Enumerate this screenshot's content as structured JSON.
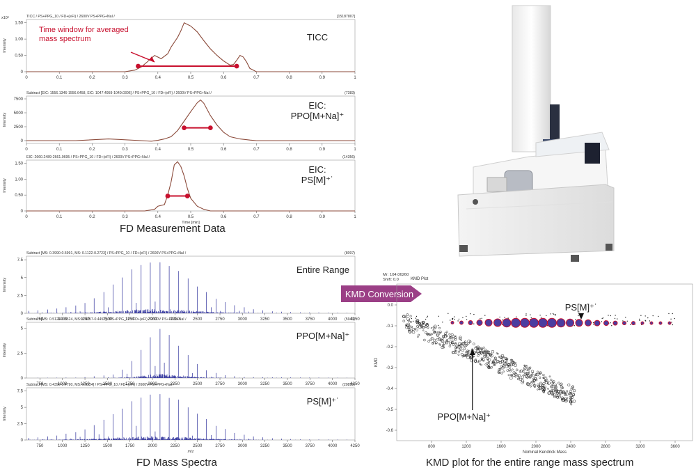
{
  "captions": {
    "fd_measurement": "FD Measurement Data",
    "fd_spectra": "FD Mass Spectra",
    "kmd": "KMD plot for the entire range mass spectrum",
    "kmd_conversion": "KMD Conversion"
  },
  "colors": {
    "trace": "#8b4a3a",
    "spectrum": "#2b2e9a",
    "window": "#c8102e",
    "kmd_arrow": "#9b3f86",
    "marker_fill": "#4b3da0",
    "marker_edge": "#c8102e",
    "scatter": "#222222"
  },
  "chart_data": [
    {
      "id": "ticc",
      "type": "line",
      "header": "TICC / PS+PPG_10 / FD+(eFI) / 2600V PS+PPG+NaI /",
      "header_right": "[15187807]",
      "exponent_label": "x10⁶",
      "ylabel": "Intensity",
      "series_label": "TICC",
      "annotation": [
        "Time window for averaged",
        "mass spectrum"
      ],
      "xlim": [
        0,
        1
      ],
      "ylim": [
        0,
        1.6
      ],
      "xticks": [
        "0",
        "0.1",
        "0.2",
        "0.3",
        "0.4",
        "0.5",
        "0.6",
        "0.7",
        "0.8",
        "0.9",
        "1"
      ],
      "yticks": [
        "0",
        "0.50",
        "1.00",
        "1.50"
      ],
      "x": [
        0,
        0.3,
        0.33,
        0.35,
        0.37,
        0.39,
        0.41,
        0.43,
        0.44,
        0.46,
        0.47,
        0.48,
        0.5,
        0.52,
        0.54,
        0.56,
        0.58,
        0.6,
        0.62,
        0.63,
        0.64,
        0.65,
        0.66,
        0.67,
        0.68,
        0.7,
        1
      ],
      "y": [
        0,
        0,
        0.05,
        0.15,
        0.32,
        0.5,
        0.4,
        0.55,
        0.75,
        1.05,
        1.25,
        1.5,
        1.4,
        1.22,
        0.95,
        0.7,
        0.5,
        0.33,
        0.2,
        0.22,
        0.35,
        0.5,
        0.45,
        0.3,
        0.1,
        0,
        0
      ],
      "window": [
        0.34,
        0.64
      ],
      "window_y": 0.17
    },
    {
      "id": "eic-ppo",
      "type": "line",
      "header": "Subtract [EIC: 1556.1346-1556.6458, EIC: 1047.4959-1049.0306] / PS+PPG_10 / FD+(eFI) / 2600V PS+PPG+NaI /",
      "header_right": "(7383)",
      "ylabel": "Intensity",
      "series_label": [
        "EIC:",
        "PPO[M+Na]⁺"
      ],
      "xlim": [
        0,
        1
      ],
      "ylim": [
        -500,
        8000
      ],
      "xticks": [
        "0",
        "0.1",
        "0.2",
        "0.3",
        "0.4",
        "0.5",
        "0.6",
        "0.7",
        "0.8",
        "0.9",
        "1"
      ],
      "yticks": [
        "0",
        "2500",
        "5000",
        "7500"
      ],
      "x": [
        0,
        0.15,
        0.25,
        0.35,
        0.38,
        0.4,
        0.42,
        0.44,
        0.46,
        0.48,
        0.5,
        0.52,
        0.53,
        0.54,
        0.56,
        0.58,
        0.6,
        0.62,
        0.65,
        0.68,
        0.7,
        1
      ],
      "y": [
        0,
        0,
        300,
        0,
        -100,
        50,
        300,
        700,
        1800,
        3500,
        5200,
        6800,
        7300,
        6700,
        4500,
        2800,
        1500,
        700,
        300,
        100,
        0,
        0
      ],
      "window": [
        0.48,
        0.56
      ],
      "window_y": 2300
    },
    {
      "id": "eic-ps",
      "type": "line",
      "header": "EIC: 2660.2489-2661.0695 / PS+PPG_10 / FD+(eFI) / 2600V PS+PPG+NaI /",
      "header_right": "(14356)",
      "ylabel": "Intensity",
      "xlabel": "Time [min]",
      "series_label": [
        "EIC:",
        "PS[M]⁺˙"
      ],
      "xlim": [
        0,
        1
      ],
      "ylim": [
        0,
        1.6
      ],
      "xticks": [
        "0",
        "0.1",
        "0.2",
        "0.3",
        "0.4",
        "0.5",
        "0.6",
        "0.7",
        "0.8",
        "0.9",
        "1"
      ],
      "yticks": [
        "0",
        "0.50",
        "1.00",
        "1.50"
      ],
      "x": [
        0,
        0.36,
        0.39,
        0.4,
        0.42,
        0.43,
        0.44,
        0.45,
        0.46,
        0.47,
        0.48,
        0.49,
        0.5,
        0.52,
        0.54,
        0.56,
        0.58,
        1
      ],
      "y": [
        0,
        0,
        0.05,
        0.15,
        0.2,
        0.5,
        0.9,
        1.45,
        1.55,
        1.4,
        1.1,
        0.7,
        0.4,
        0.15,
        0.05,
        0,
        0,
        0
      ],
      "window": [
        0.43,
        0.49
      ],
      "window_y": 0.47
    },
    {
      "id": "spec-entire",
      "type": "bar",
      "header": "Subtract [MS: 0.3990-0.5991, MS: 0.1122-0.2723] / PS+PPG_10 / FD+(eFI) / 2600V PS+PPG+NaI /",
      "header_right": "(8097)",
      "ylabel": "Intensity",
      "series_label": "Entire Range",
      "xlim": [
        600,
        4250
      ],
      "ylim": [
        0,
        8
      ],
      "xticks": [
        "750",
        "1000",
        "1250",
        "1500",
        "1750",
        "2000",
        "2250",
        "2500",
        "2750",
        "3000",
        "3250",
        "3500",
        "3750",
        "4000",
        "4250"
      ],
      "yticks": [
        "0",
        "2.5",
        "5",
        "7.5"
      ],
      "envelope": [
        [
          600,
          0.3
        ],
        [
          900,
          0.6
        ],
        [
          1200,
          1.2
        ],
        [
          1400,
          2.5
        ],
        [
          1600,
          4.5
        ],
        [
          1800,
          6.5
        ],
        [
          2000,
          7.5
        ],
        [
          2150,
          7.4
        ],
        [
          2300,
          6.2
        ],
        [
          2500,
          4.0
        ],
        [
          2700,
          2.2
        ],
        [
          2900,
          1.2
        ],
        [
          3100,
          0.6
        ],
        [
          3300,
          0.3
        ],
        [
          3600,
          0.15
        ],
        [
          4250,
          0.05
        ]
      ]
    },
    {
      "id": "spec-ppo",
      "type": "bar",
      "header": "Subtract [MS: 0.5124-0.5524, MS: 0.4257-0.4457] / PS+PPG_10 / FD+(eFI) / 2600V PS+PPG+NaI /",
      "header_right": "(5943)",
      "ylabel": "Intensity",
      "series_label": "PPO[M+Na]⁺",
      "xlim": [
        600,
        4250
      ],
      "ylim": [
        0,
        5.6
      ],
      "xticks": [
        "750",
        "1000",
        "1250",
        "1500",
        "1750",
        "2000",
        "2250",
        "2500",
        "2750",
        "3000",
        "3250",
        "3500",
        "3750",
        "4000",
        "4250"
      ],
      "yticks": [
        "0",
        "2.5",
        "5"
      ],
      "envelope": [
        [
          600,
          0.02
        ],
        [
          1200,
          0.05
        ],
        [
          1600,
          0.4
        ],
        [
          1800,
          2.0
        ],
        [
          1950,
          3.8
        ],
        [
          2050,
          5.2
        ],
        [
          2150,
          4.8
        ],
        [
          2300,
          3.4
        ],
        [
          2450,
          1.8
        ],
        [
          2600,
          0.8
        ],
        [
          2800,
          0.3
        ],
        [
          3000,
          0.1
        ],
        [
          4250,
          0.02
        ]
      ]
    },
    {
      "id": "spec-ps",
      "type": "bar",
      "header": "Subtract [MS: 0.4390-0.4790, MS: 0.5324] / PS+PPG_10 / FD+(eFI) / 2600V PS+PPG+NaI /",
      "header_right": "(20892)",
      "ylabel": "Intensity",
      "xlabel": "m/z",
      "series_label": "PS[M]⁺˙",
      "xlim": [
        600,
        4250
      ],
      "ylim": [
        0,
        8
      ],
      "xticks": [
        "750",
        "1000",
        "1250",
        "1500",
        "1750",
        "2000",
        "2250",
        "2500",
        "2750",
        "3000",
        "3250",
        "3500",
        "3750",
        "4000",
        "4250"
      ],
      "yticks": [
        "0",
        "2.5",
        "5",
        "7.5"
      ],
      "envelope": [
        [
          600,
          0.3
        ],
        [
          900,
          0.6
        ],
        [
          1200,
          1.4
        ],
        [
          1400,
          2.8
        ],
        [
          1600,
          4.6
        ],
        [
          1800,
          6.2
        ],
        [
          2000,
          7.3
        ],
        [
          2100,
          7.4
        ],
        [
          2300,
          6.2
        ],
        [
          2500,
          4.2
        ],
        [
          2700,
          2.3
        ],
        [
          2900,
          1.2
        ],
        [
          3100,
          0.6
        ],
        [
          3300,
          0.3
        ],
        [
          3600,
          0.1
        ],
        [
          4250,
          0.05
        ]
      ]
    },
    {
      "id": "kmd",
      "type": "scatter",
      "title": "KMD Plot",
      "info": [
        "Mr: 104.06260",
        "Shift: 0.0"
      ],
      "ylabel": "KMD",
      "xlabel": "Nominal Kendrick Mass",
      "xlim": [
        400,
        3800
      ],
      "ylim": [
        -0.65,
        0.1
      ],
      "xticks": [
        "800",
        "1200",
        "1600",
        "2000",
        "2400",
        "2800",
        "3200",
        "3600"
      ],
      "yticks": [
        "0.0",
        "-0.1",
        "-0.2",
        "-0.3",
        "-0.4",
        "-0.5",
        "-0.6"
      ],
      "ps_label": "PS[M]⁺˙",
      "ppo_label": "PPO[M+Na]⁺",
      "ps_series": {
        "x": [
          1040,
          1144,
          1248,
          1352,
          1456,
          1560,
          1664,
          1768,
          1872,
          1976,
          2080,
          2184,
          2288,
          2392,
          2496,
          2600,
          2704,
          2808,
          2912,
          3016,
          3120,
          3224,
          3328,
          3432,
          3536
        ],
        "y": [
          -0.085,
          -0.085,
          -0.085,
          -0.085,
          -0.085,
          -0.085,
          -0.086,
          -0.086,
          -0.086,
          -0.086,
          -0.086,
          -0.086,
          -0.086,
          -0.086,
          -0.086,
          -0.086,
          -0.087,
          -0.087,
          -0.087,
          -0.087,
          -0.087,
          -0.087,
          -0.087,
          -0.087,
          -0.087
        ],
        "size": [
          2,
          3,
          4,
          6,
          8,
          9,
          10,
          11,
          11,
          11,
          11,
          11,
          10,
          9,
          8,
          7,
          6,
          5,
          4,
          3,
          3,
          2,
          2,
          2,
          2
        ]
      },
      "ppo_trend": {
        "x0": 480,
        "y0": -0.08,
        "x1": 2450,
        "y1": -0.44
      }
    }
  ]
}
